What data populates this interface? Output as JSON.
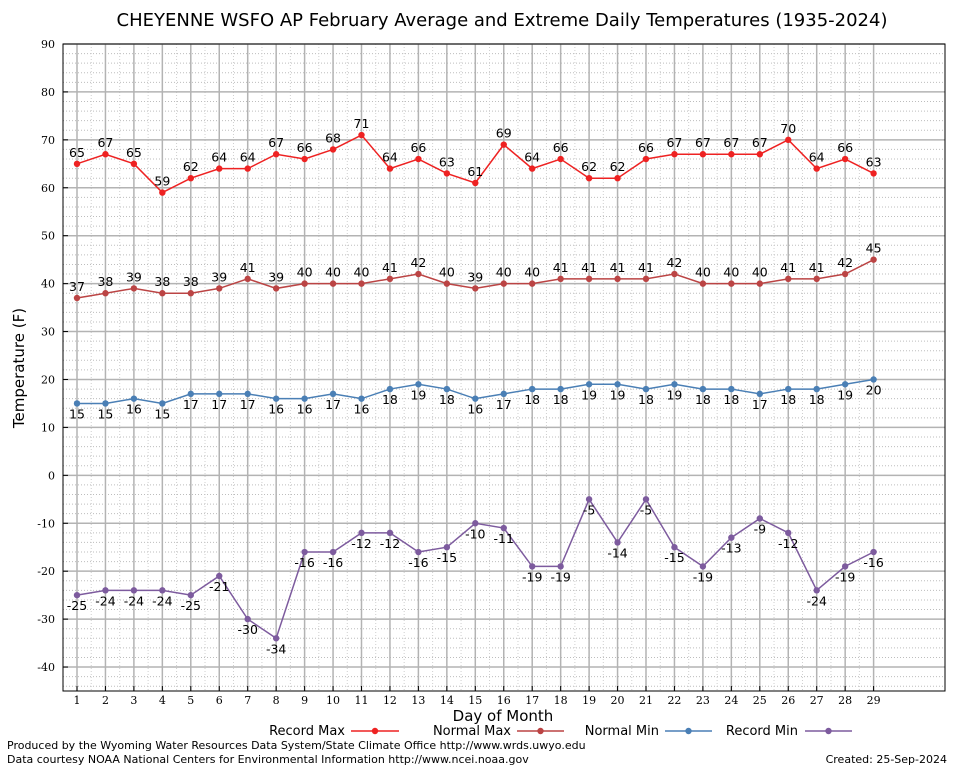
{
  "chart_data": {
    "type": "line",
    "title": "CHEYENNE WSFO AP February Average and Extreme Daily Temperatures (1935-2024)",
    "xlabel": "Day of Month",
    "ylabel": "Temperature (F)",
    "ylim": [
      -45,
      90
    ],
    "yticks": [
      90,
      80,
      70,
      60,
      50,
      40,
      30,
      20,
      10,
      0,
      -10,
      -20,
      -30,
      -40
    ],
    "x": [
      1,
      2,
      3,
      4,
      5,
      6,
      7,
      8,
      9,
      10,
      11,
      12,
      13,
      14,
      15,
      16,
      17,
      18,
      19,
      20,
      21,
      22,
      23,
      24,
      25,
      26,
      27,
      28,
      29
    ],
    "grid": true,
    "legend_position": "bottom",
    "series": [
      {
        "name": "Record Max",
        "color": "#ee2222",
        "label_pos": "above",
        "values": [
          65,
          67,
          65,
          59,
          62,
          64,
          64,
          67,
          66,
          68,
          71,
          64,
          66,
          63,
          61,
          69,
          64,
          66,
          62,
          62,
          66,
          67,
          67,
          67,
          67,
          70,
          64,
          66,
          63
        ]
      },
      {
        "name": "Normal Max",
        "color": "#bb4444",
        "label_pos": "above",
        "values": [
          37,
          38,
          39,
          38,
          38,
          39,
          41,
          39,
          40,
          40,
          40,
          41,
          42,
          40,
          39,
          40,
          40,
          41,
          41,
          41,
          41,
          42,
          40,
          40,
          40,
          41,
          41,
          42,
          45
        ]
      },
      {
        "name": "Normal Min",
        "color": "#4a7fb5",
        "label_pos": "below",
        "values": [
          15,
          15,
          16,
          15,
          17,
          17,
          17,
          16,
          16,
          17,
          16,
          18,
          19,
          18,
          16,
          17,
          18,
          18,
          19,
          19,
          18,
          19,
          18,
          18,
          17,
          18,
          18,
          19,
          20
        ]
      },
      {
        "name": "Record Min",
        "color": "#7d5b9e",
        "label_pos": "below",
        "values": [
          -25,
          -24,
          -24,
          -24,
          -25,
          -21,
          -30,
          -34,
          -16,
          -16,
          -12,
          -12,
          -16,
          -15,
          -10,
          -11,
          -19,
          -19,
          -5,
          -14,
          -5,
          -15,
          -19,
          -13,
          -9,
          -12,
          -24,
          -19,
          -16
        ]
      }
    ]
  },
  "footer": {
    "credit_line1": "Produced by the Wyoming Water Resources Data System/State Climate Office http://www.wrds.uwyo.edu",
    "credit_line2": "Data courtesy NOAA National Centers for Environmental Information http://www.ncei.noaa.gov",
    "created": "Created:  25-Sep-2024"
  }
}
